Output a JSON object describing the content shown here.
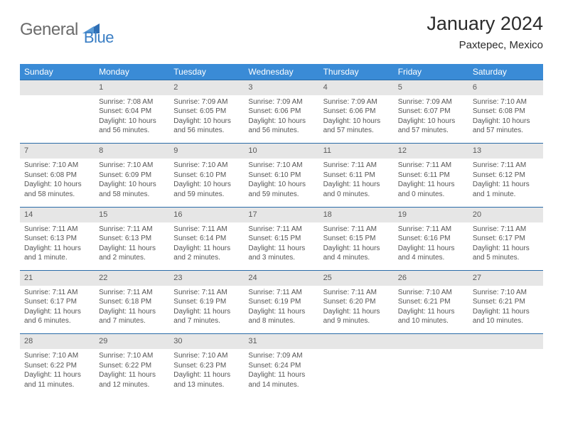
{
  "brand": {
    "part1": "General",
    "part2": "Blue"
  },
  "title": "January 2024",
  "location": "Paxtepec, Mexico",
  "colors": {
    "header_bg": "#3a8bd6",
    "header_fg": "#ffffff",
    "daynum_bg": "#e6e6e6",
    "row_border": "#2a6ba8",
    "logo_gray": "#6b6b6b",
    "logo_blue": "#3a7ec4",
    "body_text": "#555555"
  },
  "daysOfWeek": [
    "Sunday",
    "Monday",
    "Tuesday",
    "Wednesday",
    "Thursday",
    "Friday",
    "Saturday"
  ],
  "weeks": [
    {
      "nums": [
        "",
        "1",
        "2",
        "3",
        "4",
        "5",
        "6"
      ],
      "cells": [
        {},
        {
          "sunrise": "Sunrise: 7:08 AM",
          "sunset": "Sunset: 6:04 PM",
          "daylight": "Daylight: 10 hours and 56 minutes."
        },
        {
          "sunrise": "Sunrise: 7:09 AM",
          "sunset": "Sunset: 6:05 PM",
          "daylight": "Daylight: 10 hours and 56 minutes."
        },
        {
          "sunrise": "Sunrise: 7:09 AM",
          "sunset": "Sunset: 6:06 PM",
          "daylight": "Daylight: 10 hours and 56 minutes."
        },
        {
          "sunrise": "Sunrise: 7:09 AM",
          "sunset": "Sunset: 6:06 PM",
          "daylight": "Daylight: 10 hours and 57 minutes."
        },
        {
          "sunrise": "Sunrise: 7:09 AM",
          "sunset": "Sunset: 6:07 PM",
          "daylight": "Daylight: 10 hours and 57 minutes."
        },
        {
          "sunrise": "Sunrise: 7:10 AM",
          "sunset": "Sunset: 6:08 PM",
          "daylight": "Daylight: 10 hours and 57 minutes."
        }
      ]
    },
    {
      "nums": [
        "7",
        "8",
        "9",
        "10",
        "11",
        "12",
        "13"
      ],
      "cells": [
        {
          "sunrise": "Sunrise: 7:10 AM",
          "sunset": "Sunset: 6:08 PM",
          "daylight": "Daylight: 10 hours and 58 minutes."
        },
        {
          "sunrise": "Sunrise: 7:10 AM",
          "sunset": "Sunset: 6:09 PM",
          "daylight": "Daylight: 10 hours and 58 minutes."
        },
        {
          "sunrise": "Sunrise: 7:10 AM",
          "sunset": "Sunset: 6:10 PM",
          "daylight": "Daylight: 10 hours and 59 minutes."
        },
        {
          "sunrise": "Sunrise: 7:10 AM",
          "sunset": "Sunset: 6:10 PM",
          "daylight": "Daylight: 10 hours and 59 minutes."
        },
        {
          "sunrise": "Sunrise: 7:11 AM",
          "sunset": "Sunset: 6:11 PM",
          "daylight": "Daylight: 11 hours and 0 minutes."
        },
        {
          "sunrise": "Sunrise: 7:11 AM",
          "sunset": "Sunset: 6:11 PM",
          "daylight": "Daylight: 11 hours and 0 minutes."
        },
        {
          "sunrise": "Sunrise: 7:11 AM",
          "sunset": "Sunset: 6:12 PM",
          "daylight": "Daylight: 11 hours and 1 minute."
        }
      ]
    },
    {
      "nums": [
        "14",
        "15",
        "16",
        "17",
        "18",
        "19",
        "20"
      ],
      "cells": [
        {
          "sunrise": "Sunrise: 7:11 AM",
          "sunset": "Sunset: 6:13 PM",
          "daylight": "Daylight: 11 hours and 1 minute."
        },
        {
          "sunrise": "Sunrise: 7:11 AM",
          "sunset": "Sunset: 6:13 PM",
          "daylight": "Daylight: 11 hours and 2 minutes."
        },
        {
          "sunrise": "Sunrise: 7:11 AM",
          "sunset": "Sunset: 6:14 PM",
          "daylight": "Daylight: 11 hours and 2 minutes."
        },
        {
          "sunrise": "Sunrise: 7:11 AM",
          "sunset": "Sunset: 6:15 PM",
          "daylight": "Daylight: 11 hours and 3 minutes."
        },
        {
          "sunrise": "Sunrise: 7:11 AM",
          "sunset": "Sunset: 6:15 PM",
          "daylight": "Daylight: 11 hours and 4 minutes."
        },
        {
          "sunrise": "Sunrise: 7:11 AM",
          "sunset": "Sunset: 6:16 PM",
          "daylight": "Daylight: 11 hours and 4 minutes."
        },
        {
          "sunrise": "Sunrise: 7:11 AM",
          "sunset": "Sunset: 6:17 PM",
          "daylight": "Daylight: 11 hours and 5 minutes."
        }
      ]
    },
    {
      "nums": [
        "21",
        "22",
        "23",
        "24",
        "25",
        "26",
        "27"
      ],
      "cells": [
        {
          "sunrise": "Sunrise: 7:11 AM",
          "sunset": "Sunset: 6:17 PM",
          "daylight": "Daylight: 11 hours and 6 minutes."
        },
        {
          "sunrise": "Sunrise: 7:11 AM",
          "sunset": "Sunset: 6:18 PM",
          "daylight": "Daylight: 11 hours and 7 minutes."
        },
        {
          "sunrise": "Sunrise: 7:11 AM",
          "sunset": "Sunset: 6:19 PM",
          "daylight": "Daylight: 11 hours and 7 minutes."
        },
        {
          "sunrise": "Sunrise: 7:11 AM",
          "sunset": "Sunset: 6:19 PM",
          "daylight": "Daylight: 11 hours and 8 minutes."
        },
        {
          "sunrise": "Sunrise: 7:11 AM",
          "sunset": "Sunset: 6:20 PM",
          "daylight": "Daylight: 11 hours and 9 minutes."
        },
        {
          "sunrise": "Sunrise: 7:10 AM",
          "sunset": "Sunset: 6:21 PM",
          "daylight": "Daylight: 11 hours and 10 minutes."
        },
        {
          "sunrise": "Sunrise: 7:10 AM",
          "sunset": "Sunset: 6:21 PM",
          "daylight": "Daylight: 11 hours and 10 minutes."
        }
      ]
    },
    {
      "nums": [
        "28",
        "29",
        "30",
        "31",
        "",
        "",
        ""
      ],
      "cells": [
        {
          "sunrise": "Sunrise: 7:10 AM",
          "sunset": "Sunset: 6:22 PM",
          "daylight": "Daylight: 11 hours and 11 minutes."
        },
        {
          "sunrise": "Sunrise: 7:10 AM",
          "sunset": "Sunset: 6:22 PM",
          "daylight": "Daylight: 11 hours and 12 minutes."
        },
        {
          "sunrise": "Sunrise: 7:10 AM",
          "sunset": "Sunset: 6:23 PM",
          "daylight": "Daylight: 11 hours and 13 minutes."
        },
        {
          "sunrise": "Sunrise: 7:09 AM",
          "sunset": "Sunset: 6:24 PM",
          "daylight": "Daylight: 11 hours and 14 minutes."
        },
        {},
        {},
        {}
      ]
    }
  ]
}
